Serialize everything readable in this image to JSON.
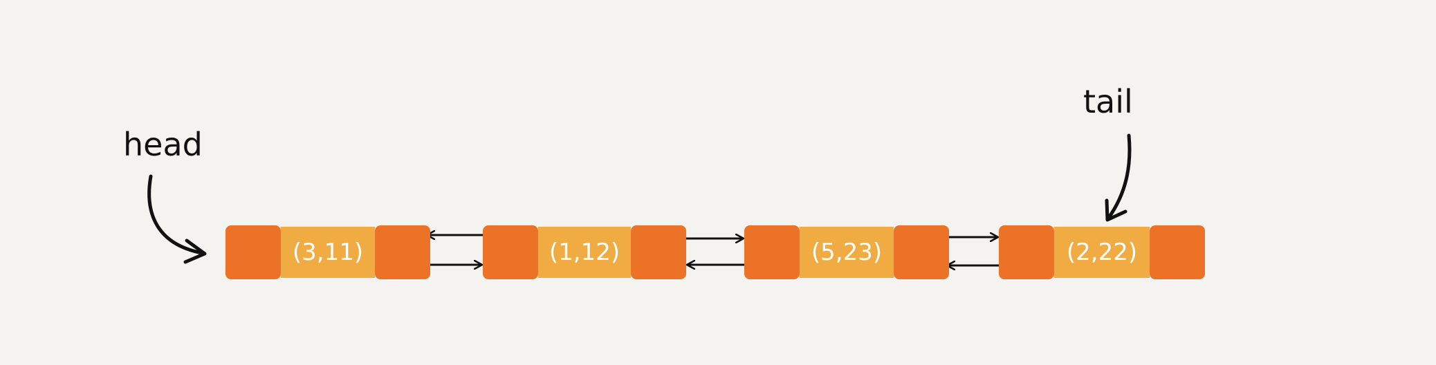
{
  "labels": {
    "head": "head",
    "tail": "tail"
  },
  "nodes": [
    {
      "data": "(3,11)"
    },
    {
      "data": "(1,12)"
    },
    {
      "data": "(5,23)"
    },
    {
      "data": "(2,22)"
    }
  ],
  "colors": {
    "background": "#f4f3ef",
    "pointer_cell": "#ec7228",
    "data_cell": "#f0ac42",
    "data_text": "#ffffff",
    "ink": "#111111"
  }
}
